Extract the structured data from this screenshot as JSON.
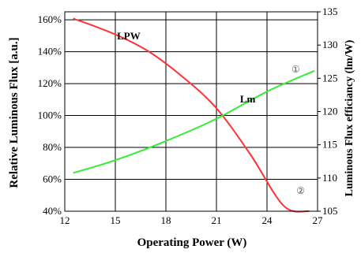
{
  "chart_data": {
    "type": "line",
    "xlabel": "Operating Power (W)",
    "ylabel_left": "Relative Luminous Flux [a.u.]",
    "ylabel_right": "Luminous Flux efficiancy (lm/W)",
    "x_ticks": [
      "12",
      "15",
      "18",
      "21",
      "24",
      "27"
    ],
    "x_tick_values": [
      12,
      15,
      18,
      21,
      24,
      27
    ],
    "xlim": [
      12,
      27
    ],
    "y_left_ticks": [
      "40%",
      "60%",
      "80%",
      "100%",
      "120%",
      "140%",
      "160%"
    ],
    "y_left_tick_values": [
      40,
      60,
      80,
      100,
      120,
      140,
      160
    ],
    "ylim_left": [
      40,
      165
    ],
    "y_right_ticks": [
      "105",
      "110",
      "115",
      "120",
      "125",
      "130",
      "135"
    ],
    "y_right_tick_values": [
      105,
      110,
      115,
      120,
      125,
      130,
      135
    ],
    "ylim_right": [
      105,
      135
    ],
    "grid": true,
    "series": [
      {
        "label": "LPW",
        "axis": "right",
        "color": "#ff3333",
        "marker": "②",
        "x": [
          12.5,
          15,
          17,
          19,
          21,
          23,
          25,
          26.5
        ],
        "values": [
          134.0,
          131.6,
          129.0,
          125.2,
          120.5,
          113.6,
          105.8,
          105.0
        ]
      },
      {
        "label": "Lm",
        "axis": "left",
        "color": "#33ee33",
        "marker": "①",
        "x": [
          12.5,
          15,
          18,
          21,
          24,
          26.8
        ],
        "values": [
          64,
          72,
          84,
          98,
          115,
          128
        ]
      }
    ]
  }
}
